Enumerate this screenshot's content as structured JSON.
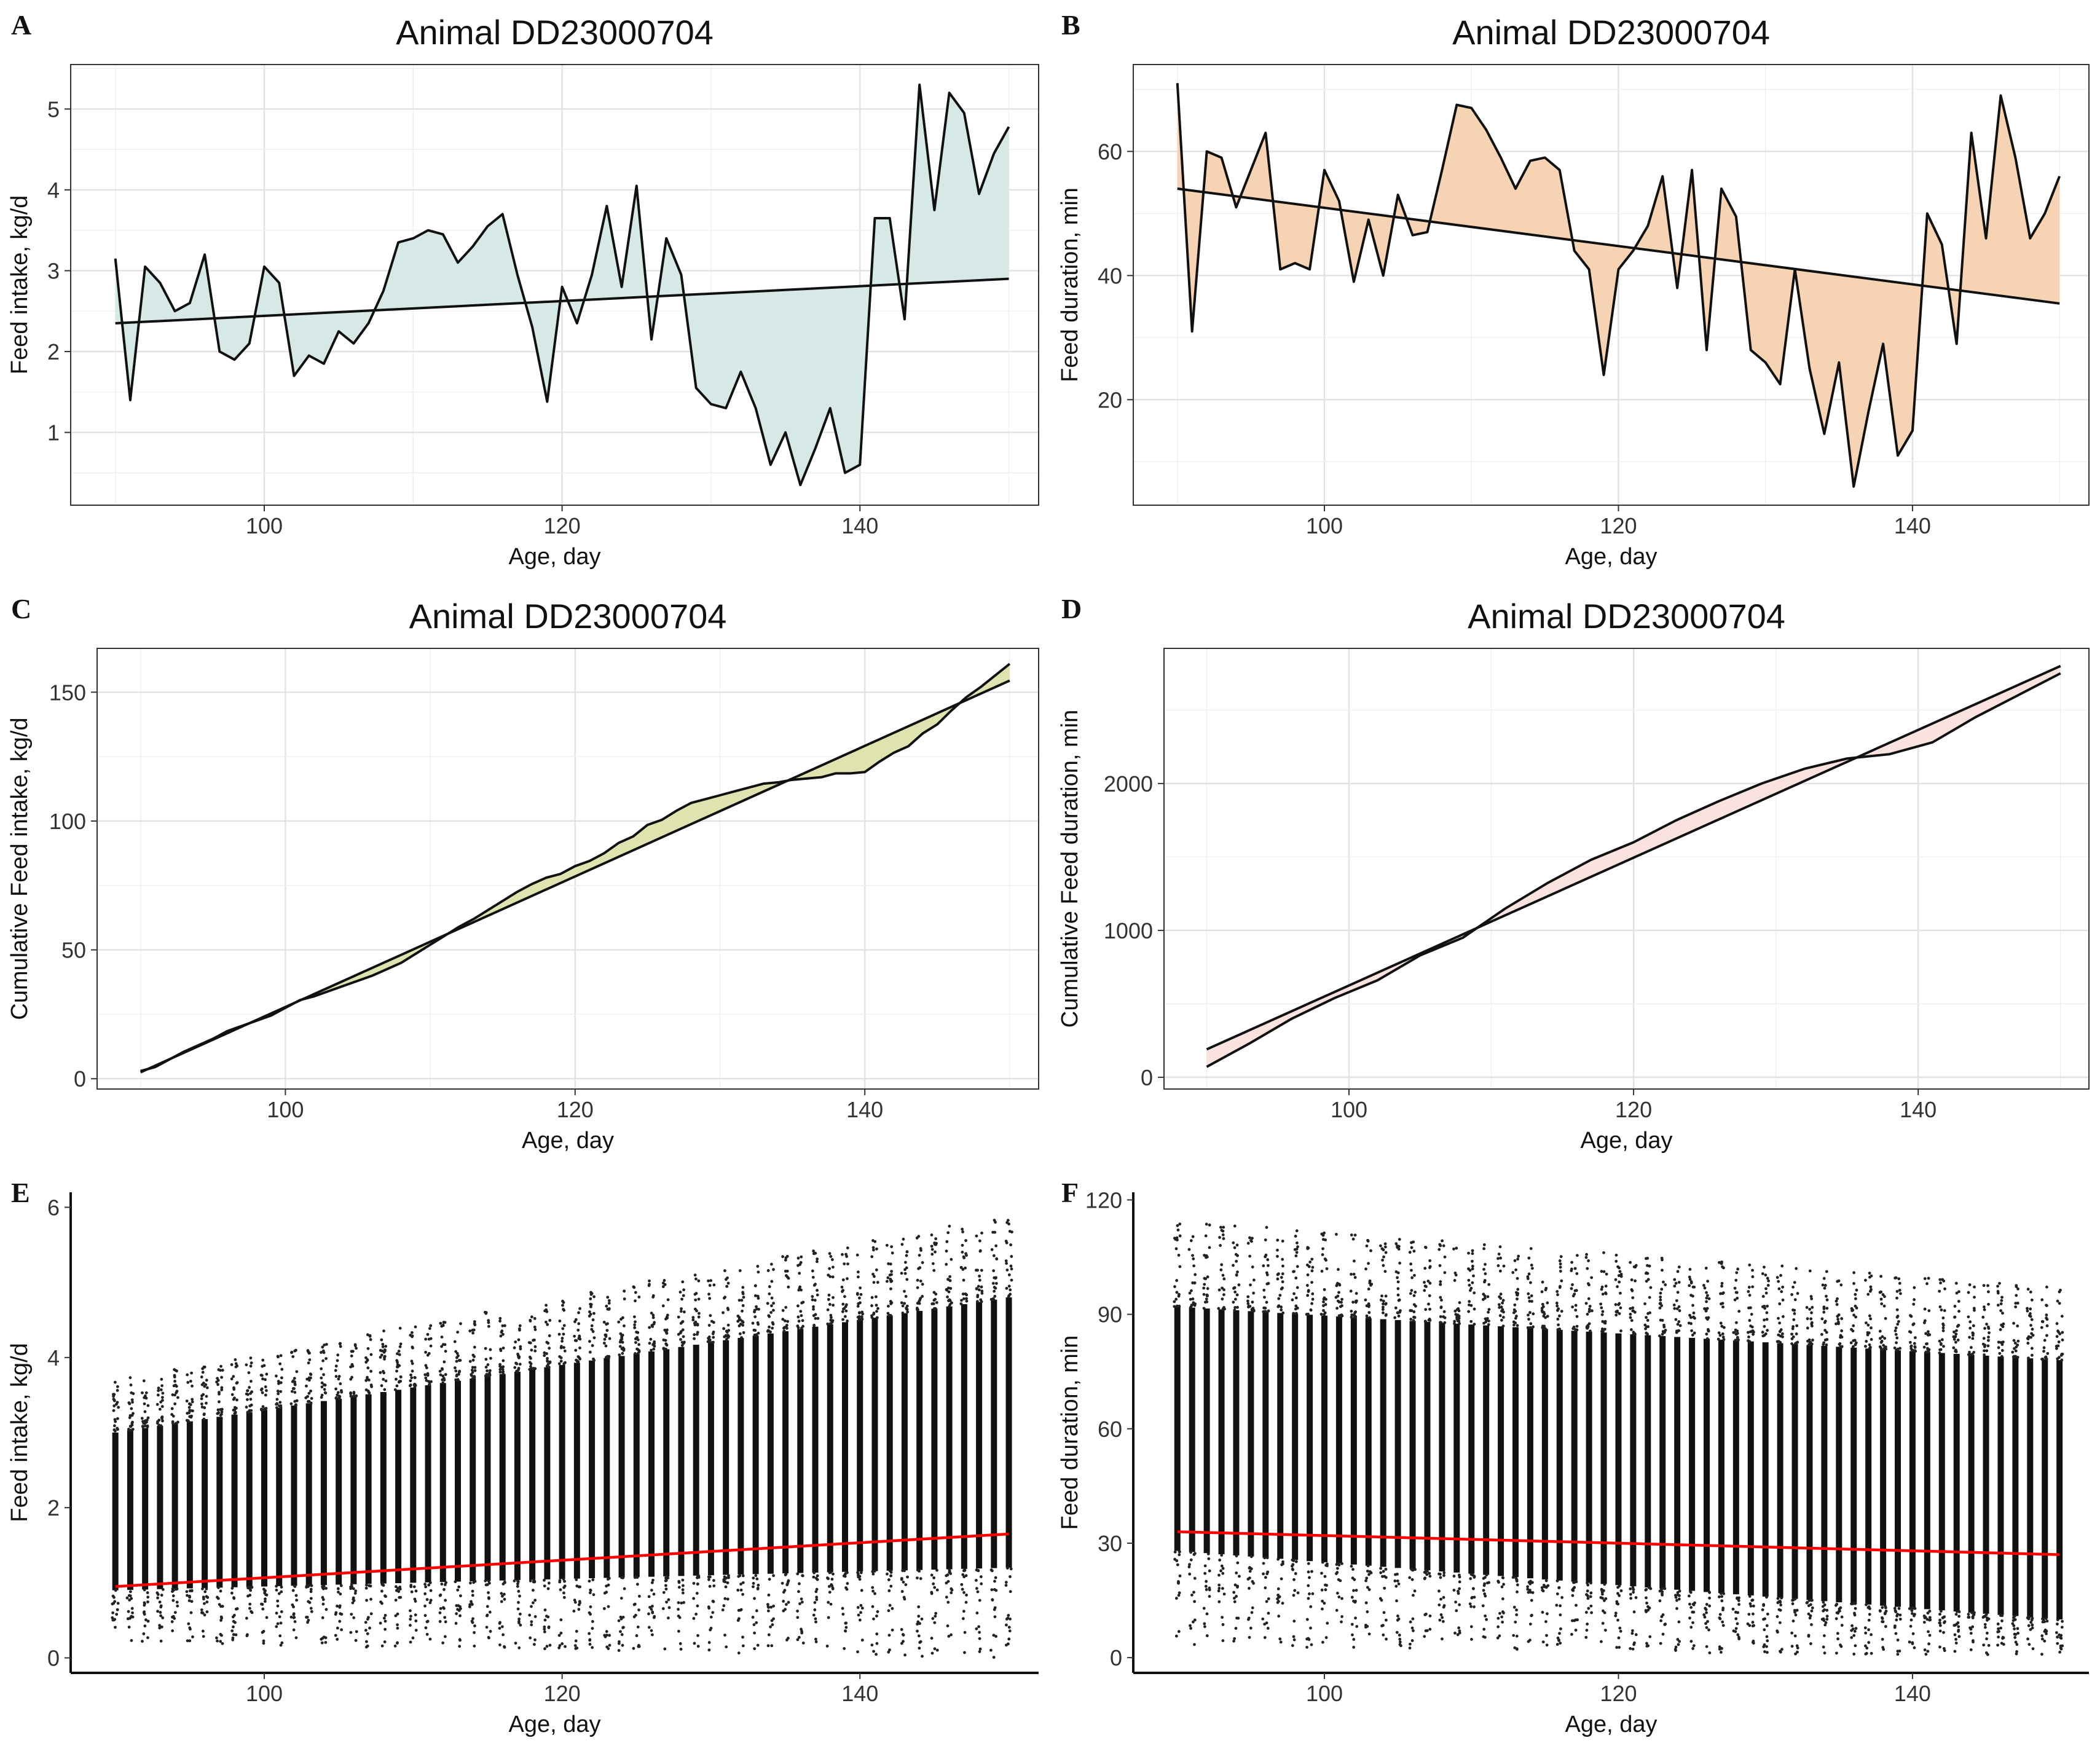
{
  "chart_data": [
    {
      "panel": "A",
      "type": "line",
      "title": "Animal DD23000704",
      "xlabel": "Age, day",
      "ylabel": "Feed intake, kg/d",
      "xlim": [
        87,
        152
      ],
      "ylim": [
        0.1,
        5.55
      ],
      "xticks": [
        100,
        120,
        140
      ],
      "yticks": [
        1,
        2,
        3,
        4,
        5
      ],
      "grid": true,
      "fill": "#d6e9e6",
      "series": [
        {
          "name": "observed",
          "x": [
            90,
            91,
            92,
            93,
            94,
            95,
            96,
            97,
            98,
            99,
            100,
            101,
            102,
            103,
            104,
            105,
            106,
            107,
            108,
            109,
            110,
            111,
            112,
            113,
            114,
            115,
            116,
            117,
            118,
            119,
            120,
            121,
            122,
            123,
            124,
            125,
            126,
            127,
            128,
            129,
            130,
            131,
            132,
            133,
            134,
            135,
            136,
            137,
            138,
            139,
            140,
            141,
            142,
            143,
            144,
            145,
            146,
            147,
            148,
            149,
            150
          ],
          "y": [
            3.15,
            1.4,
            3.05,
            2.85,
            2.5,
            2.6,
            3.2,
            2.0,
            1.9,
            2.1,
            3.05,
            2.85,
            1.7,
            1.95,
            1.85,
            2.25,
            2.1,
            2.35,
            2.75,
            3.35,
            3.4,
            3.5,
            3.45,
            3.1,
            3.3,
            3.55,
            3.7,
            2.95,
            2.3,
            1.38,
            2.8,
            2.35,
            2.95,
            3.8,
            2.8,
            4.05,
            2.15,
            3.4,
            2.95,
            1.55,
            1.35,
            1.3,
            1.75,
            1.3,
            0.6,
            1.0,
            0.35,
            0.8,
            1.3,
            0.5,
            0.6,
            3.65,
            3.65,
            2.4,
            5.3,
            3.75,
            5.2,
            4.95,
            3.95,
            4.45,
            4.78
          ]
        },
        {
          "name": "trend",
          "x": [
            90,
            150
          ],
          "y": [
            2.35,
            2.9
          ]
        }
      ]
    },
    {
      "panel": "B",
      "type": "line",
      "title": "Animal DD23000704",
      "xlabel": "Age, day",
      "ylabel": "Feed duration, min",
      "xlim": [
        87,
        152
      ],
      "ylim": [
        3,
        74
      ],
      "xticks": [
        100,
        120,
        140
      ],
      "yticks": [
        20,
        40,
        60
      ],
      "grid": true,
      "fill": "#f6d3b3",
      "series": [
        {
          "name": "observed",
          "x": [
            90,
            91,
            92,
            93,
            94,
            95,
            96,
            97,
            98,
            99,
            100,
            101,
            102,
            103,
            104,
            105,
            106,
            107,
            108,
            109,
            110,
            111,
            112,
            113,
            114,
            115,
            116,
            117,
            118,
            119,
            120,
            121,
            122,
            123,
            124,
            125,
            126,
            127,
            128,
            129,
            130,
            131,
            132,
            133,
            134,
            135,
            136,
            137,
            138,
            139,
            140,
            141,
            142,
            143,
            144,
            145,
            146,
            147,
            148,
            149,
            150
          ],
          "y": [
            71,
            31,
            60,
            59,
            51,
            57,
            63,
            41,
            42,
            41,
            57,
            52,
            39,
            49,
            40,
            53,
            46.5,
            47,
            57,
            67.5,
            67,
            63.5,
            59,
            54,
            58.5,
            59,
            57,
            44,
            41,
            24,
            41,
            44,
            48,
            56,
            38,
            57,
            28,
            54,
            49.5,
            28,
            26,
            22.5,
            41,
            25,
            14.5,
            26,
            6,
            18,
            29,
            11,
            15,
            50,
            45,
            29,
            63,
            46,
            69,
            59,
            46,
            50,
            56
          ]
        },
        {
          "name": "trend",
          "x": [
            90,
            150
          ],
          "y": [
            54,
            35.5
          ]
        }
      ]
    },
    {
      "panel": "C",
      "type": "line",
      "title": "Animal DD23000704",
      "xlabel": "Age, day",
      "ylabel": "Cumulative Feed intake, kg/d",
      "xlim": [
        87,
        152
      ],
      "ylim": [
        -4,
        167
      ],
      "xticks": [
        100,
        120,
        140
      ],
      "yticks": [
        0,
        50,
        100,
        150
      ],
      "grid": true,
      "fill": "#dfe3b0",
      "series": [
        {
          "name": "cumulative observed",
          "x": [
            90,
            91,
            92,
            93,
            94,
            95,
            96,
            97,
            98,
            99,
            100,
            101,
            102,
            103,
            104,
            105,
            106,
            107,
            108,
            109,
            110,
            111,
            112,
            113,
            114,
            115,
            116,
            117,
            118,
            119,
            120,
            121,
            122,
            123,
            124,
            125,
            126,
            127,
            128,
            129,
            130,
            131,
            132,
            133,
            134,
            135,
            136,
            137,
            138,
            139,
            140,
            141,
            142,
            143,
            144,
            145,
            146,
            147,
            148,
            149,
            150
          ],
          "y": [
            3,
            4.5,
            7.5,
            10.5,
            13,
            15.5,
            18.5,
            20.5,
            22.5,
            24.5,
            27.5,
            30.5,
            32,
            34,
            36,
            38,
            40,
            42.5,
            45,
            48.5,
            52,
            55.5,
            59,
            62,
            65.5,
            69,
            72.5,
            75.5,
            78,
            79.5,
            82.5,
            84.5,
            87.5,
            91.5,
            94,
            98.5,
            100.5,
            104,
            107,
            108.5,
            110,
            111.5,
            113,
            114.5,
            115,
            116,
            116.5,
            117,
            118.5,
            118.5,
            119,
            123,
            126.5,
            129,
            134,
            137.5,
            143,
            148,
            152,
            156.5,
            161
          ]
        },
        {
          "name": "linear",
          "x": [
            90,
            150
          ],
          "y": [
            2.5,
            154.5
          ]
        }
      ]
    },
    {
      "panel": "D",
      "type": "line",
      "title": "Animal DD23000704",
      "xlabel": "Age, day",
      "ylabel": "Cumulative Feed duration, min",
      "xlim": [
        87,
        152
      ],
      "ylim": [
        -80,
        2920
      ],
      "xticks": [
        100,
        120,
        140
      ],
      "yticks": [
        0,
        1000,
        2000
      ],
      "grid": true,
      "fill": "#fae3de",
      "series": [
        {
          "name": "cumulative observed",
          "x": [
            90,
            93,
            96,
            99,
            102,
            105,
            108,
            111,
            114,
            117,
            120,
            123,
            126,
            129,
            132,
            135,
            138,
            141,
            144,
            147,
            150
          ],
          "y": [
            71,
            230,
            400,
            540,
            660,
            830,
            950,
            1150,
            1325,
            1480,
            1600,
            1750,
            1880,
            2000,
            2100,
            2170,
            2200,
            2280,
            2450,
            2600,
            2750
          ]
        },
        {
          "name": "linear",
          "x": [
            90,
            150
          ],
          "y": [
            190,
            2800
          ]
        }
      ]
    },
    {
      "panel": "E",
      "type": "scatter",
      "title": "",
      "xlabel": "Age, day",
      "ylabel": "Feed intake, kg/d",
      "xlim": [
        87,
        152
      ],
      "ylim": [
        -0.2,
        6.2
      ],
      "xticks": [
        100,
        120,
        140
      ],
      "yticks": [
        0,
        2,
        4,
        6
      ],
      "grid": false,
      "points_per_day": "dense vertical bands, one per day 90-150",
      "band": {
        "x": [
          90,
          150
        ],
        "low": [
          0.9,
          1.2
        ],
        "high": [
          3.0,
          4.8
        ],
        "outlier_min": [
          0.2,
          0.0
        ],
        "outlier_max": [
          3.7,
          5.9
        ]
      },
      "trend": {
        "color": "#ff0000",
        "x": [
          90,
          150
        ],
        "y": [
          0.95,
          1.65
        ]
      }
    },
    {
      "panel": "F",
      "type": "scatter",
      "title": "",
      "xlabel": "Age, day",
      "ylabel": "Feed duration, min",
      "xlim": [
        87,
        152
      ],
      "ylim": [
        -4,
        122
      ],
      "xticks": [
        100,
        120,
        140
      ],
      "yticks": [
        0,
        30,
        60,
        90,
        120
      ],
      "grid": false,
      "points_per_day": "dense vertical bands, one per day 90-150",
      "band": {
        "x": [
          90,
          150
        ],
        "low": [
          28,
          10
        ],
        "high": [
          92,
          78
        ],
        "outlier_min": [
          3,
          0
        ],
        "outlier_max": [
          115,
          97
        ]
      },
      "trend": {
        "color": "#ff0000",
        "x": [
          90,
          150
        ],
        "y": [
          33,
          27
        ]
      }
    }
  ]
}
